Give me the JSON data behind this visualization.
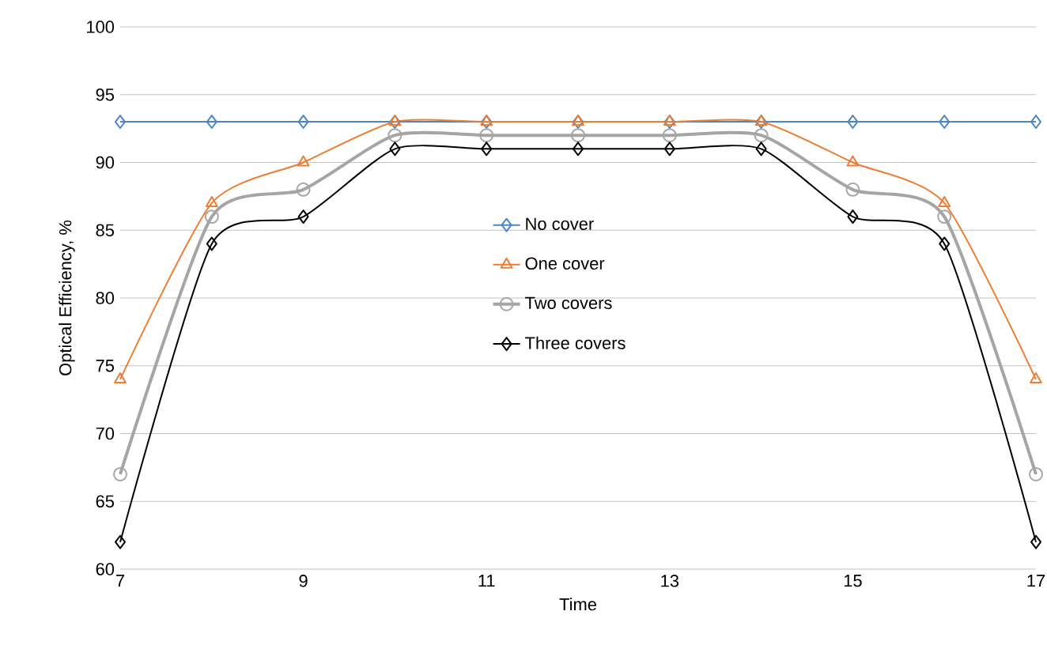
{
  "chart_data": {
    "type": "line",
    "xlabel": "Time",
    "ylabel": "Optical Efficiency, %",
    "x": [
      7,
      8,
      9,
      10,
      11,
      12,
      13,
      14,
      15,
      16,
      17
    ],
    "series": [
      {
        "name": "No cover",
        "color": "#4a86c8",
        "marker": "diamond",
        "values": [
          93,
          93,
          93,
          93,
          93,
          93,
          93,
          93,
          93,
          93,
          93
        ]
      },
      {
        "name": "One cover",
        "color": "#ed7d31",
        "marker": "triangle",
        "values": [
          74,
          87,
          90,
          93,
          93,
          93,
          93,
          93,
          90,
          87,
          74
        ]
      },
      {
        "name": "Two covers",
        "color": "#a5a5a5",
        "marker": "circle",
        "values": [
          67,
          86,
          88,
          92,
          92,
          92,
          92,
          92,
          88,
          86,
          67
        ]
      },
      {
        "name": "Three covers",
        "color": "#000000",
        "marker": "diamond",
        "values": [
          62,
          84,
          86,
          91,
          91,
          91,
          91,
          91,
          86,
          84,
          62
        ]
      }
    ],
    "xlim": [
      7,
      17
    ],
    "xticks": [
      7,
      9,
      11,
      13,
      15,
      17
    ],
    "ylim": [
      60,
      100
    ],
    "yticks": [
      60,
      65,
      70,
      75,
      80,
      85,
      90,
      95,
      100
    ],
    "grid": "y",
    "legend": "center"
  }
}
